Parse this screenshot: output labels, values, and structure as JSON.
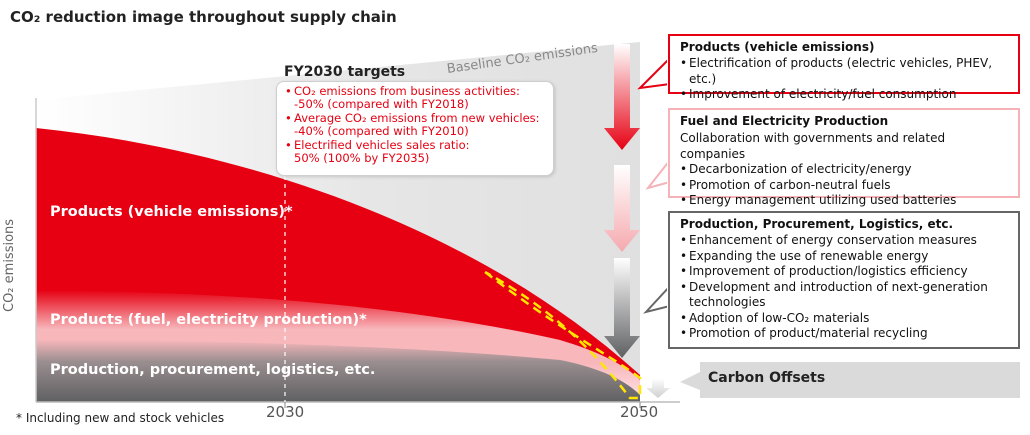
{
  "title": "CO₂ reduction image throughout supply chain",
  "chart": {
    "ylabel": "CO₂ emissions",
    "x_ticks": [
      "2030",
      "2050"
    ],
    "baseline_label": "Baseline CO₂ emissions",
    "bands": {
      "products_vehicle": "Products (vehicle emissions)*",
      "products_fuel": "Products (fuel, electricity production)*",
      "production": "Production, procurement, logistics, etc."
    },
    "footnote": "* Including new and stock vehicles"
  },
  "fy2030": {
    "title": "FY2030 targets",
    "targets": [
      {
        "line1": "CO₂ emissions from business activities:",
        "line2": "-50% (compared with FY2018)"
      },
      {
        "line1": "Average CO₂ emissions from new vehicles:",
        "line2": "-40% (compared with FY2010)"
      },
      {
        "line1": "Electrified vehicles sales ratio:",
        "line2": "50% (100% by FY2035)"
      }
    ]
  },
  "boxes": {
    "products": {
      "title": "Products (vehicle emissions)",
      "items": [
        "Electrification of products (electric vehicles, PHEV, etc.)",
        "Improvement of electricity/fuel consumption"
      ]
    },
    "fuel": {
      "title": "Fuel and Electricity Production",
      "subtitle": "Collaboration with governments and related companies",
      "items": [
        "Decarbonization of electricity/energy",
        "Promotion of carbon-neutral fuels",
        "Energy management utilizing used batteries"
      ]
    },
    "production": {
      "title": "Production, Procurement, Logistics, etc.",
      "items": [
        "Enhancement of energy conservation measures",
        "Expanding the use of renewable energy",
        "Improvement of production/logistics efficiency",
        "Development and introduction of next-generation technologies",
        "Adoption of low-CO₂ materials",
        "Promotion of product/material recycling"
      ]
    },
    "offsets": "Carbon Offsets"
  },
  "colors": {
    "red": "#e60012",
    "pink": "#f7b7bb",
    "gray_dark": "#5f6062",
    "gray_light": "#e3e3e3",
    "dash_yellow": "#ffe500"
  }
}
